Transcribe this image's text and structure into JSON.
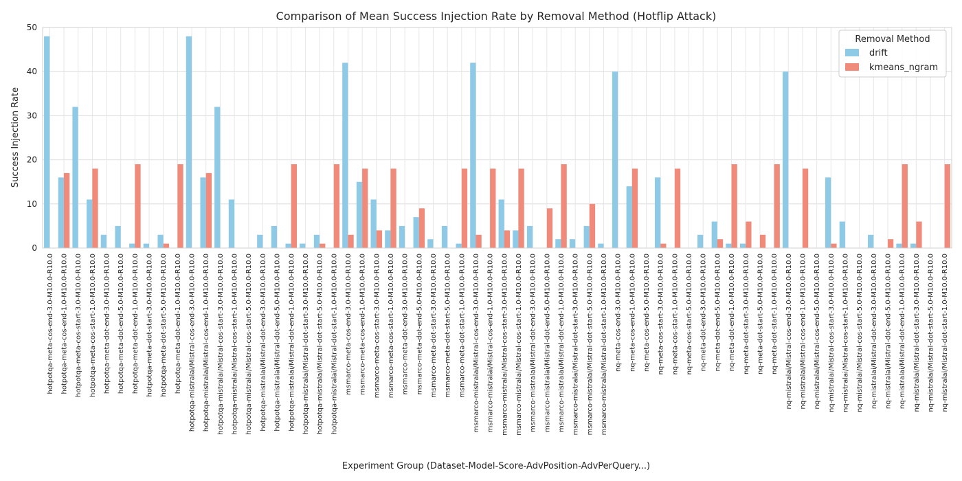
{
  "chart_data": {
    "type": "bar",
    "title": "Comparison of Mean Success Injection Rate by Removal Method (Hotflip Attack)",
    "xlabel": "Experiment Group (Dataset-Model-Score-AdvPosition-AdvPerQuery...)",
    "ylabel": "Success Injection Rate",
    "ylim": [
      0,
      50
    ],
    "yticks": [
      0,
      10,
      20,
      30,
      40,
      50
    ],
    "grid": true,
    "legend": {
      "title": "Removal Method",
      "placement": "top-right"
    },
    "categories": [
      "hotpotqa-meta-cos-end-3.0-M10.0-R10.0",
      "hotpotqa-meta-cos-end-1.0-M10.0-R10.0",
      "hotpotqa-meta-cos-start-3.0-M10.0-R10.0",
      "hotpotqa-meta-cos-start-1.0-M10.0-R10.0",
      "hotpotqa-meta-dot-end-3.0-M10.0-R10.0",
      "hotpotqa-meta-dot-end-5.0-M10.0-R10.0",
      "hotpotqa-meta-dot-end-1.0-M10.0-R10.0",
      "hotpotqa-meta-dot-start-3.0-M10.0-R10.0",
      "hotpotqa-meta-dot-start-5.0-M10.0-R10.0",
      "hotpotqa-meta-dot-end-1.0-M10.0-R10.0",
      "hotpotqa-mistralai/Mistral-cos-end-3.0-M10.0-R10.0",
      "hotpotqa-mistralai/Mistral-cos-end-1.0-M10.0-R10.0",
      "hotpotqa-mistralai/Mistral-cos-start-3.0-M10.0-R10.0",
      "hotpotqa-mistralai/Mistral-cos-start-1.0-M10.0-R10.0",
      "hotpotqa-mistralai/Mistral-cos-start-5.0-M10.0-R10.0",
      "hotpotqa-mistralai/Mistral-dot-end-3.0-M10.0-R10.0",
      "hotpotqa-mistralai/Mistral-dot-end-5.0-M10.0-R10.0",
      "hotpotqa-mistralai/Mistral-dot-end-1.0-M10.0-R10.0",
      "hotpotqa-mistralai/Mistral-dot-start-3.0-M10.0-R10.0",
      "hotpotqa-mistralai/Mistral-dot-start-5.0-M10.0-R10.0",
      "hotpotqa-mistralai/Mistral-dot-start-1.0-M10.0-R10.0",
      "msmarco-meta-cos-end-3.0-M10.0-R10.0",
      "msmarco-meta-cos-end-1.0-M10.0-R10.0",
      "msmarco-meta-cos-start-3.0-M10.0-R10.0",
      "msmarco-meta-cos-start-1.0-M10.0-R10.0",
      "msmarco-meta-dot-end-3.0-M10.0-R10.0",
      "msmarco-meta-dot-end-5.0-M10.0-R10.0",
      "msmarco-meta-dot-start-3.0-M10.0-R10.0",
      "msmarco-meta-dot-start-5.0-M10.0-R10.0",
      "msmarco-meta-dot-start-1.0-M10.0-R10.0",
      "msmarco-mistralai/Mistral-cos-end-3.0-M10.0-R10.0",
      "msmarco-mistralai/Mistral-cos-end-1.0-M10.0-R10.0",
      "msmarco-mistralai/Mistral-cos-start-3.0-M10.0-R10.0",
      "msmarco-mistralai/Mistral-cos-start-1.0-M10.0-R10.0",
      "msmarco-mistralai/Mistral-dot-end-3.0-M10.0-R10.0",
      "msmarco-mistralai/Mistral-dot-end-5.0-M10.0-R10.0",
      "msmarco-mistralai/Mistral-dot-end-1.0-M10.0-R10.0",
      "msmarco-mistralai/Mistral-dot-start-3.0-M10.0-R10.0",
      "msmarco-mistralai/Mistral-dot-start-5.0-M10.0-R10.0",
      "msmarco-mistralai/Mistral-dot-start-1.0-M10.0-R10.0",
      "nq-meta-cos-end-3.0-M10.0-R10.0",
      "nq-meta-cos-end-1.0-M10.0-R10.0",
      "nq-meta-cos-end-5.0-M10.0-R10.0",
      "nq-meta-cos-start-3.0-M10.0-R10.0",
      "nq-meta-cos-start-1.0-M10.0-R10.0",
      "nq-meta-cos-start-5.0-M10.0-R10.0",
      "nq-meta-dot-end-3.0-M10.0-R10.0",
      "nq-meta-dot-end-5.0-M10.0-R10.0",
      "nq-meta-dot-end-1.0-M10.0-R10.0",
      "nq-meta-dot-start-3.0-M10.0-R10.0",
      "nq-meta-dot-start-5.0-M10.0-R10.0",
      "nq-meta-dot-start-1.0-M10.0-R10.0",
      "nq-mistralai/Mistral-cos-end-3.0-M10.0-R10.0",
      "nq-mistralai/Mistral-cos-end-1.0-M10.0-R10.0",
      "nq-mistralai/Mistral-cos-end-5.0-M10.0-R10.0",
      "nq-mistralai/Mistral-cos-start-3.0-M10.0-R10.0",
      "nq-mistralai/Mistral-cos-start-1.0-M10.0-R10.0",
      "nq-mistralai/Mistral-cos-start-5.0-M10.0-R10.0",
      "nq-mistralai/Mistral-dot-end-3.0-M10.0-R10.0",
      "nq-mistralai/Mistral-dot-end-5.0-M10.0-R10.0",
      "nq-mistralai/Mistral-dot-end-1.0-M10.0-R10.0",
      "nq-mistralai/Mistral-dot-start-3.0-M10.0-R10.0",
      "nq-mistralai/Mistral-dot-start-5.0-M10.0-R10.0",
      "nq-mistralai/Mistral-dot-start-1.0-M10.0-R10.0"
    ],
    "series": [
      {
        "name": "drift",
        "color": "#8ecae6",
        "values": [
          48,
          16,
          32,
          11,
          3,
          5,
          1,
          1,
          3,
          0,
          48,
          16,
          32,
          11,
          0,
          3,
          5,
          1,
          1,
          3,
          0,
          42,
          15,
          11,
          4,
          5,
          7,
          2,
          5,
          1,
          42,
          0,
          11,
          4,
          5,
          0,
          2,
          2,
          5,
          1,
          40,
          14,
          0,
          16,
          0,
          0,
          3,
          6,
          1,
          1,
          0,
          0,
          40,
          0,
          0,
          16,
          6,
          0,
          3,
          0,
          1,
          1,
          0,
          0
        ]
      },
      {
        "name": "kmeans_ngram",
        "color": "#f08a7a",
        "values": [
          0,
          17,
          0,
          18,
          0,
          0,
          19,
          0,
          1,
          19,
          0,
          17,
          0,
          0,
          0,
          0,
          0,
          19,
          0,
          1,
          19,
          3,
          18,
          4,
          18,
          0,
          9,
          0,
          0,
          18,
          3,
          18,
          4,
          18,
          0,
          9,
          19,
          0,
          10,
          0,
          0,
          18,
          0,
          1,
          18,
          0,
          0,
          2,
          19,
          6,
          3,
          19,
          0,
          18,
          0,
          1,
          0,
          0,
          0,
          2,
          19,
          6,
          0,
          19
        ]
      }
    ]
  }
}
